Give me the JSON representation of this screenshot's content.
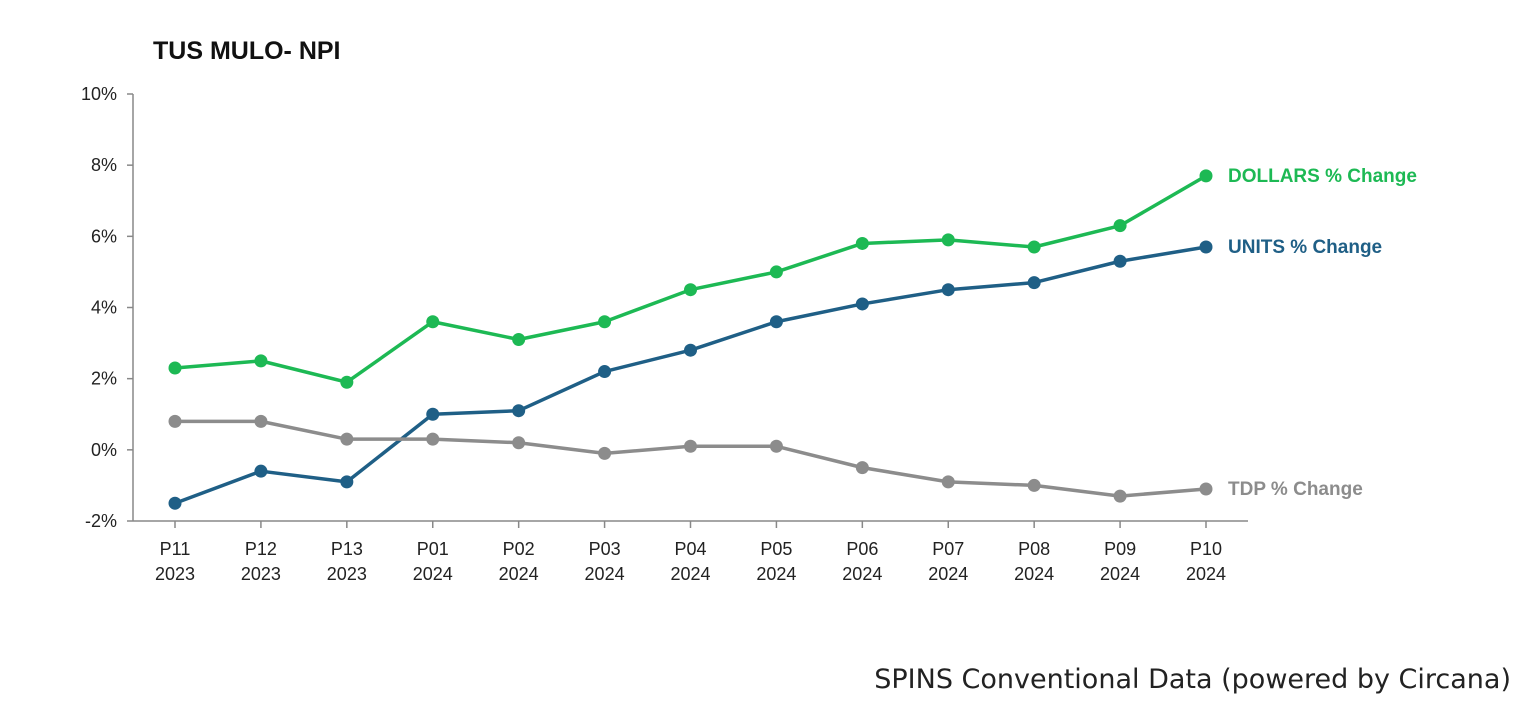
{
  "source_note": "SPINS Conventional Data (powered by Circana)",
  "chart_data": {
    "type": "line",
    "title": "TUS MULO- NPI",
    "xlabel": "",
    "ylabel": "",
    "categories": [
      [
        "P11",
        "2023"
      ],
      [
        "P12",
        "2023"
      ],
      [
        "P13",
        "2023"
      ],
      [
        "P01",
        "2024"
      ],
      [
        "P02",
        "2024"
      ],
      [
        "P03",
        "2024"
      ],
      [
        "P04",
        "2024"
      ],
      [
        "P05",
        "2024"
      ],
      [
        "P06",
        "2024"
      ],
      [
        "P07",
        "2024"
      ],
      [
        "P08",
        "2024"
      ],
      [
        "P09",
        "2024"
      ],
      [
        "P10",
        "2024"
      ]
    ],
    "y_ticks": [
      "10%",
      "8%",
      "6%",
      "4%",
      "2%",
      "0%",
      "-2%"
    ],
    "ylim": [
      -2,
      10
    ],
    "grid": false,
    "legend": "inline labels at line ends",
    "series": [
      {
        "name": "DOLLARS % Change",
        "color": "#1db954",
        "values": [
          2.3,
          2.5,
          1.9,
          3.6,
          3.1,
          3.6,
          4.5,
          5.0,
          5.8,
          5.9,
          5.7,
          6.3,
          7.7
        ]
      },
      {
        "name": "UNITS % Change",
        "color": "#1f5f86",
        "values": [
          -1.5,
          -0.6,
          -0.9,
          1.0,
          1.1,
          2.2,
          2.8,
          3.6,
          4.1,
          4.5,
          4.7,
          5.3,
          5.7
        ]
      },
      {
        "name": "TDP % Change",
        "color": "#8c8c8c",
        "values": [
          0.8,
          0.8,
          0.3,
          0.3,
          0.2,
          -0.1,
          0.1,
          0.1,
          -0.5,
          -0.9,
          -1.0,
          -1.3,
          -1.1
        ]
      }
    ]
  }
}
